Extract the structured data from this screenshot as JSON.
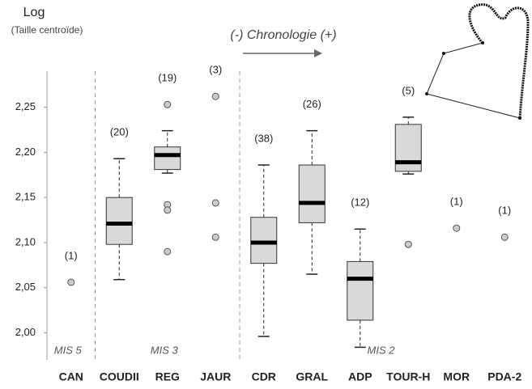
{
  "chart_data": {
    "type": "box",
    "y_label": "Log",
    "y_sublabel": "(Taille centroïde)",
    "annotation": "(-) Chronologie (+)",
    "periods": [
      "MIS 5",
      "MIS 3",
      "MIS 2"
    ],
    "categories": [
      "CAN",
      "COUDII",
      "REG",
      "JAUR",
      "CDR",
      "GRAL",
      "ADP",
      "TOUR-H",
      "MOR",
      "PDA-2"
    ],
    "boxes": [
      {
        "n": 1,
        "n_label": "(1)",
        "outliers": [
          2.056
        ]
      },
      {
        "n": 20,
        "n_label": "(20)",
        "low": 2.059,
        "q1": 2.098,
        "median": 2.121,
        "q3": 2.15,
        "high": 2.193,
        "outliers": []
      },
      {
        "n": 19,
        "n_label": "(19)",
        "low": 2.177,
        "q1": 2.181,
        "median": 2.197,
        "q3": 2.206,
        "high": 2.224,
        "outliers": [
          2.253,
          2.142,
          2.136,
          2.09
        ]
      },
      {
        "n": 3,
        "n_label": "(3)",
        "outliers": [
          2.262,
          2.144,
          2.106
        ]
      },
      {
        "n": 38,
        "n_label": "(38)",
        "low": 1.996,
        "q1": 2.077,
        "median": 2.1,
        "q3": 2.128,
        "high": 2.186,
        "outliers": []
      },
      {
        "n": 26,
        "n_label": "(26)",
        "low": 2.065,
        "q1": 2.122,
        "median": 2.144,
        "q3": 2.186,
        "high": 2.224,
        "outliers": []
      },
      {
        "n": 12,
        "n_label": "(12)",
        "low": 1.984,
        "q1": 2.014,
        "median": 2.06,
        "q3": 2.079,
        "high": 2.115,
        "outliers": []
      },
      {
        "n": 5,
        "n_label": "(5)",
        "low": 2.176,
        "q1": 2.179,
        "median": 2.189,
        "q3": 2.231,
        "high": 2.239,
        "outliers": [
          2.098
        ]
      },
      {
        "n": 1,
        "n_label": "(1)",
        "outliers": [
          2.116
        ]
      },
      {
        "n": 1,
        "n_label": "(1)",
        "outliers": [
          2.106
        ]
      }
    ],
    "box_color": "#d9d9d9",
    "ylim": [
      1.97,
      2.29
    ],
    "yticks": [
      {
        "value": 2.0,
        "label": "2,00"
      },
      {
        "value": 2.05,
        "label": "2,05"
      },
      {
        "value": 2.1,
        "label": "2,10"
      },
      {
        "value": 2.15,
        "label": "2,15"
      },
      {
        "value": 2.2,
        "label": "2,20"
      },
      {
        "value": 2.25,
        "label": "2,25"
      }
    ]
  }
}
